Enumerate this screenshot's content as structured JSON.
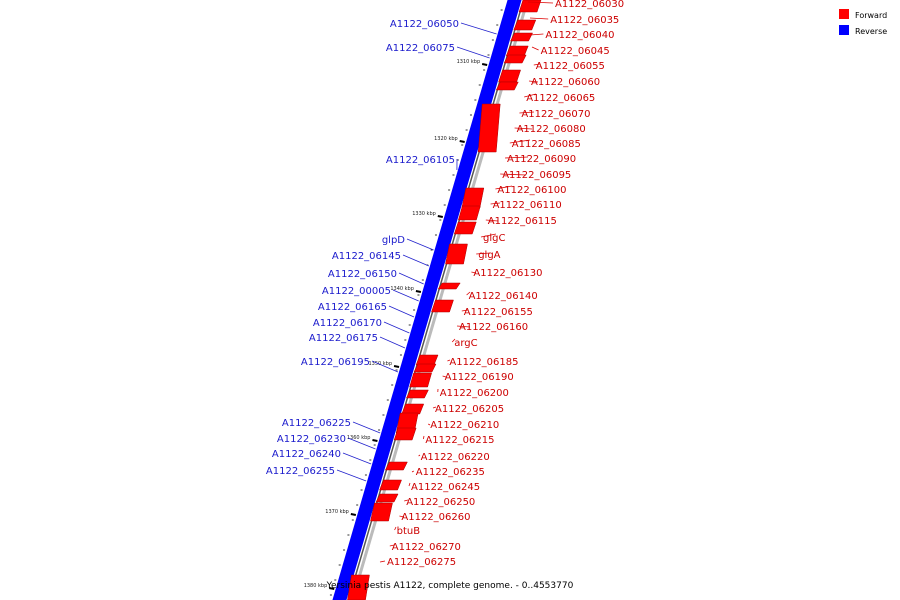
{
  "caption": "Yersinia pestis A1122, complete genome. - 0..4553770",
  "legend": [
    {
      "label": "Forward",
      "color": "#ff0000"
    },
    {
      "label": "Reverse",
      "color": "#0000ff"
    }
  ],
  "colors": {
    "forward": "#ff0000",
    "reverse": "#0000ff",
    "forward_line": "#dd0000",
    "reverse_line": "#2222cc"
  },
  "ticks": [
    "1310 kbp",
    "1320 kbp",
    "1330 kbp",
    "1340 kbp",
    "1350 kbp",
    "1360 kbp",
    "1370 kbp",
    "1380 kbp"
  ],
  "forward_genes": [
    "A1122_06030",
    "A1122_06035",
    "A1122_06040",
    "A1122_06045",
    "A1122_06055",
    "A1122_06060",
    "A1122_06065",
    "A1122_06070",
    "A1122_06080",
    "A1122_06085",
    "A1122_06090",
    "A1122_06095",
    "A1122_06100",
    "A1122_06110",
    "A1122_06115",
    "glgC",
    "glgA",
    "A1122_06130",
    "A1122_06140",
    "A1122_06155",
    "A1122_06160",
    "argC",
    "A1122_06185",
    "A1122_06190",
    "A1122_06200",
    "A1122_06205",
    "A1122_06210",
    "A1122_06215",
    "A1122_06220",
    "A1122_06235",
    "A1122_06245",
    "A1122_06250",
    "A1122_06260",
    "btuB",
    "A1122_06270",
    "A1122_06275"
  ],
  "reverse_genes": [
    "A1122_06050",
    "A1122_06075",
    "A1122_06105",
    "glpD",
    "A1122_06145",
    "A1122_06150",
    "A1122_00005",
    "A1122_06165",
    "A1122_06170",
    "A1122_06175",
    "A1122_06195",
    "A1122_06225",
    "A1122_06230",
    "A1122_06240",
    "A1122_06255"
  ]
}
